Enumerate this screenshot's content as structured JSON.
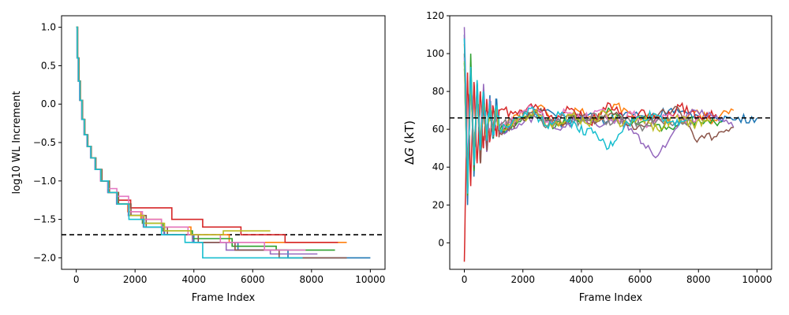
{
  "chart_data": [
    {
      "type": "line",
      "title": "",
      "xlabel": "Frame Index",
      "ylabel": "log10 WL Increment",
      "xlim": [
        -500,
        10500
      ],
      "ylim": [
        -2.15,
        1.15
      ],
      "xticks": [
        0,
        2000,
        4000,
        6000,
        8000,
        10000
      ],
      "yticks": [
        -2.0,
        -1.5,
        -1.0,
        -0.5,
        0.0,
        0.5,
        1.0
      ],
      "ytick_labels": [
        "−2.0",
        "−1.5",
        "−1.0",
        "−0.5",
        "0.0",
        "0.5",
        "1.0"
      ],
      "reference_line": {
        "y": -1.7,
        "style": "dashed",
        "color": "#000000"
      },
      "step": true,
      "series": [
        {
          "color": "#1f77b4",
          "x": [
            0,
            40,
            80,
            130,
            200,
            280,
            380,
            500,
            650,
            850,
            1100,
            1400,
            1800,
            2300,
            3000,
            4000,
            5500,
            7200,
            10000
          ],
          "y": [
            1.0,
            0.6,
            0.3,
            0.05,
            -0.2,
            -0.4,
            -0.55,
            -0.7,
            -0.85,
            -1.0,
            -1.15,
            -1.3,
            -1.45,
            -1.6,
            -1.7,
            -1.8,
            -1.9,
            -2.0,
            -2.0
          ]
        },
        {
          "color": "#ff7f0e",
          "x": [
            0,
            30,
            70,
            120,
            190,
            270,
            370,
            490,
            640,
            830,
            1080,
            1380,
            1750,
            2200,
            2900,
            3900,
            5200,
            6600,
            9200
          ],
          "y": [
            1.0,
            0.6,
            0.3,
            0.05,
            -0.2,
            -0.4,
            -0.55,
            -0.7,
            -0.85,
            -1.0,
            -1.15,
            -1.3,
            -1.4,
            -1.5,
            -1.6,
            -1.7,
            -1.8,
            -1.8,
            -1.8
          ]
        },
        {
          "color": "#2ca02c",
          "x": [
            0,
            35,
            75,
            125,
            195,
            275,
            375,
            495,
            645,
            840,
            1090,
            1390,
            1780,
            2250,
            2950,
            3950,
            5300,
            6800,
            8800
          ],
          "y": [
            1.0,
            0.6,
            0.3,
            0.05,
            -0.2,
            -0.4,
            -0.55,
            -0.7,
            -0.85,
            -1.0,
            -1.15,
            -1.3,
            -1.45,
            -1.55,
            -1.65,
            -1.75,
            -1.85,
            -1.9,
            -1.9
          ]
        },
        {
          "color": "#d62728",
          "x": [
            0,
            45,
            85,
            135,
            205,
            285,
            385,
            505,
            655,
            860,
            1120,
            1420,
            1850,
            2400,
            3250,
            4300,
            5600,
            7100,
            8900
          ],
          "y": [
            1.0,
            0.6,
            0.3,
            0.05,
            -0.2,
            -0.4,
            -0.55,
            -0.7,
            -0.85,
            -1.0,
            -1.15,
            -1.25,
            -1.35,
            -1.35,
            -1.5,
            -1.6,
            -1.7,
            -1.8,
            -1.8
          ]
        },
        {
          "color": "#9467bd",
          "x": [
            0,
            25,
            65,
            115,
            185,
            265,
            365,
            485,
            635,
            825,
            1070,
            1370,
            1770,
            2280,
            2980,
            3950,
            5100,
            6600,
            8200
          ],
          "y": [
            1.0,
            0.6,
            0.3,
            0.05,
            -0.2,
            -0.4,
            -0.55,
            -0.7,
            -0.85,
            -1.0,
            -1.15,
            -1.3,
            -1.45,
            -1.6,
            -1.7,
            -1.8,
            -1.9,
            -1.95,
            -1.95
          ]
        },
        {
          "color": "#8c564b",
          "x": [
            0,
            50,
            95,
            145,
            215,
            295,
            395,
            515,
            670,
            875,
            1130,
            1440,
            1860,
            2380,
            3100,
            4150,
            5400,
            6900,
            9200
          ],
          "y": [
            1.0,
            0.6,
            0.3,
            0.05,
            -0.2,
            -0.4,
            -0.55,
            -0.7,
            -0.85,
            -1.0,
            -1.15,
            -1.3,
            -1.45,
            -1.6,
            -1.7,
            -1.8,
            -1.9,
            -2.0,
            -2.0
          ]
        },
        {
          "color": "#e377c2",
          "x": [
            0,
            30,
            70,
            120,
            190,
            270,
            370,
            490,
            640,
            830,
            1080,
            1380,
            1780,
            2250,
            2900,
            3800,
            4900,
            6400,
            7800
          ],
          "y": [
            1.0,
            0.6,
            0.3,
            0.05,
            -0.2,
            -0.4,
            -0.55,
            -0.7,
            -0.85,
            -1.0,
            -1.1,
            -1.2,
            -1.4,
            -1.5,
            -1.6,
            -1.7,
            -1.8,
            -1.9,
            -1.9
          ]
        },
        {
          "color": "#bcbd22",
          "x": [
            0,
            40,
            80,
            130,
            200,
            280,
            380,
            500,
            650,
            850,
            1100,
            1400,
            1800,
            2300,
            3000,
            3900,
            5000,
            6600,
            6600
          ],
          "y": [
            1.0,
            0.6,
            0.3,
            0.05,
            -0.2,
            -0.4,
            -0.55,
            -0.7,
            -0.85,
            -1.0,
            -1.15,
            -1.3,
            -1.45,
            -1.55,
            -1.65,
            -1.7,
            -1.65,
            -1.65,
            -1.65
          ]
        },
        {
          "color": "#17becf",
          "x": [
            0,
            35,
            75,
            125,
            195,
            275,
            375,
            495,
            645,
            840,
            1090,
            1390,
            1790,
            2300,
            2900,
            3700,
            4300,
            6000,
            7700
          ],
          "y": [
            1.0,
            0.6,
            0.3,
            0.05,
            -0.2,
            -0.4,
            -0.55,
            -0.7,
            -0.85,
            -1.0,
            -1.15,
            -1.3,
            -1.5,
            -1.6,
            -1.7,
            -1.8,
            -2.0,
            -2.0,
            -2.0
          ]
        }
      ]
    },
    {
      "type": "line",
      "title": "",
      "xlabel": "Frame Index",
      "ylabel": "ΔG (kT)",
      "ylabel_symbol": "Δ",
      "ylabel_var": "G",
      "ylabel_unit": " (kT)",
      "xlim": [
        -500,
        10500
      ],
      "ylim": [
        -14,
        120
      ],
      "xticks": [
        0,
        2000,
        4000,
        6000,
        8000,
        10000
      ],
      "yticks": [
        0,
        20,
        40,
        60,
        80,
        100,
        120
      ],
      "reference_line": {
        "y": 66,
        "style": "dashed",
        "color": "#000000"
      },
      "step": false,
      "series": [
        {
          "color": "#1f77b4",
          "end": 10000,
          "early": [
            110,
            20,
            95,
            35,
            85,
            45,
            80,
            50,
            78,
            55,
            75,
            58
          ],
          "late": [
            66,
            70,
            63,
            68,
            64,
            69,
            65,
            71,
            66,
            67,
            65,
            66
          ]
        },
        {
          "color": "#ff7f0e",
          "end": 9200,
          "early": [
            105,
            30,
            90,
            40,
            82,
            48,
            76,
            55,
            74,
            58,
            72,
            60
          ],
          "late": [
            67,
            72,
            62,
            70,
            64,
            73,
            66,
            68,
            62,
            69,
            65,
            70
          ]
        },
        {
          "color": "#2ca02c",
          "end": 8800,
          "early": [
            95,
            25,
            100,
            38,
            84,
            46,
            79,
            52,
            73,
            56,
            70,
            59
          ],
          "late": [
            64,
            69,
            61,
            67,
            63,
            70,
            62,
            66,
            60,
            65,
            63,
            64
          ]
        },
        {
          "color": "#d62728",
          "end": 8600,
          "early": [
            -10,
            90,
            30,
            85,
            42,
            80,
            50,
            76,
            54,
            72,
            57,
            70
          ],
          "late": [
            68,
            73,
            65,
            71,
            63,
            74,
            66,
            70,
            64,
            72,
            67,
            68
          ]
        },
        {
          "color": "#9467bd",
          "end": 9200,
          "early": [
            114,
            35,
            92,
            45,
            83,
            50,
            84,
            48,
            76,
            56,
            71,
            58
          ],
          "late": [
            63,
            68,
            60,
            66,
            62,
            65,
            58,
            45,
            60,
            70,
            66,
            61
          ]
        },
        {
          "color": "#8c564b",
          "end": 9200,
          "early": [
            100,
            30,
            88,
            40,
            80,
            42,
            75,
            50,
            72,
            57,
            70,
            58
          ],
          "late": [
            65,
            70,
            62,
            68,
            64,
            69,
            60,
            66,
            72,
            55,
            56,
            61
          ]
        },
        {
          "color": "#e377c2",
          "end": 8000,
          "early": [
            98,
            28,
            86,
            44,
            79,
            52,
            75,
            56,
            73,
            58,
            70,
            61
          ],
          "late": [
            66,
            71,
            63,
            69,
            65,
            70,
            64,
            68,
            62,
            67,
            65,
            66
          ]
        },
        {
          "color": "#7f7f7f",
          "end": 7800,
          "early": [
            92,
            33,
            84,
            47,
            78,
            53,
            74,
            57,
            71,
            59,
            69,
            62
          ],
          "late": [
            65,
            69,
            62,
            67,
            64,
            68,
            63,
            66,
            61,
            65,
            64,
            65
          ]
        },
        {
          "color": "#bcbd22",
          "end": 8400,
          "early": [
            96,
            29,
            87,
            43,
            81,
            51,
            77,
            55,
            73,
            58,
            71,
            60
          ],
          "late": [
            64,
            70,
            61,
            68,
            63,
            69,
            62,
            67,
            60,
            66,
            63,
            64
          ]
        },
        {
          "color": "#17becf",
          "end": 7600,
          "early": [
            108,
            26,
            93,
            41,
            86,
            49,
            80,
            54,
            75,
            57,
            72,
            60
          ],
          "late": [
            66,
            71,
            62,
            69,
            60,
            58,
            50,
            62,
            66,
            68,
            64,
            65
          ]
        }
      ]
    }
  ]
}
